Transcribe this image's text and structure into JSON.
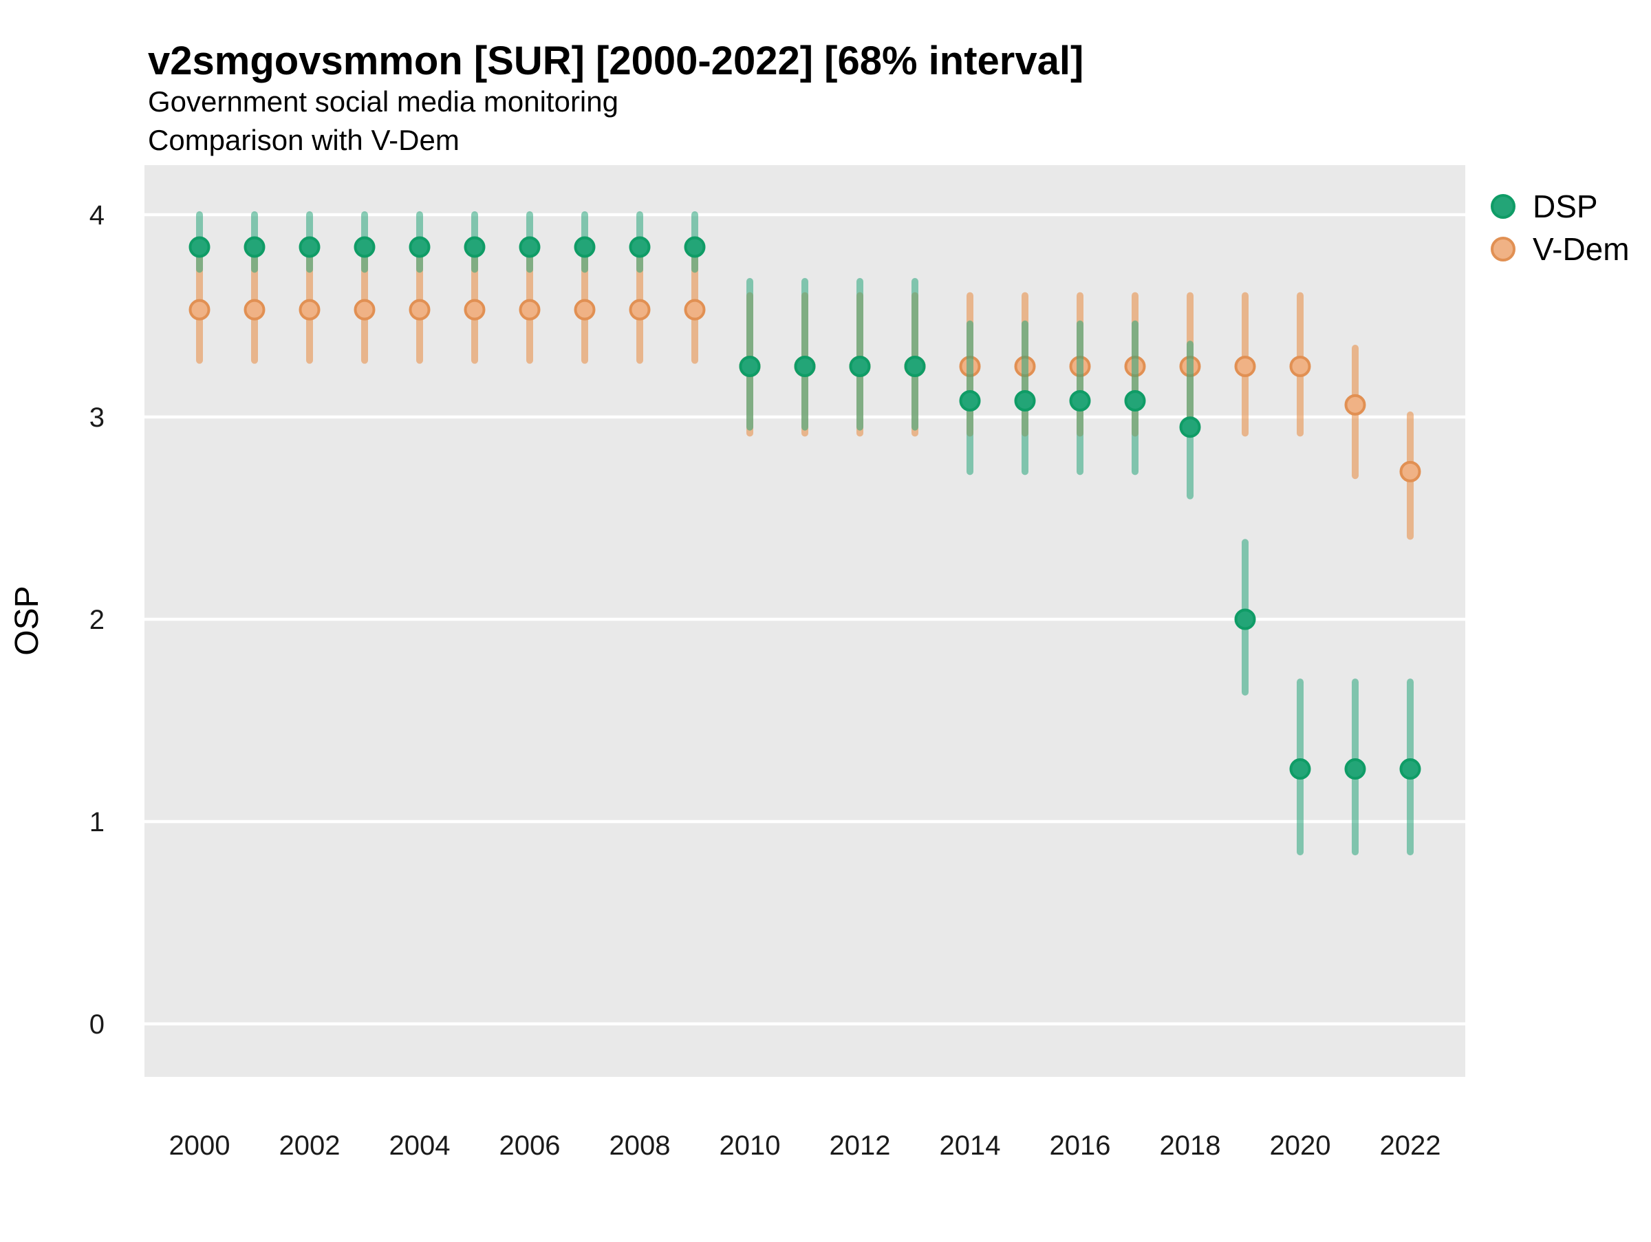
{
  "title": "v2smgovsmmon [SUR] [2000-2022] [68% interval]",
  "subtitle1": "Government social media monitoring",
  "subtitle2": "Comparison with V-Dem",
  "ylabel": "OSP",
  "legend": {
    "dsp": "DSP",
    "vdem": "V-Dem"
  },
  "colors": {
    "dsp_point": "#23a577",
    "dsp_point_stroke": "#0f9c66",
    "dsp_bar": "rgba(42,165,124,0.55)",
    "vdem_point": "#f0b285",
    "vdem_point_stroke": "#e19053",
    "vdem_bar": "rgba(232,146,79,0.6)",
    "panel_bg": "#e9e9e9",
    "grid": "#ffffff"
  },
  "chart_data": {
    "type": "pointrange",
    "title": "v2smgovsmmon [SUR] [2000-2022] [68% interval]",
    "subtitle": [
      "Government social media monitoring",
      "Comparison with V-Dem"
    ],
    "xlabel": "",
    "ylabel": "OSP",
    "interval": "68%",
    "x": [
      2000,
      2001,
      2002,
      2003,
      2004,
      2005,
      2006,
      2007,
      2008,
      2009,
      2010,
      2011,
      2012,
      2013,
      2014,
      2015,
      2016,
      2017,
      2018,
      2019,
      2020,
      2021,
      2022
    ],
    "x_ticks": [
      2000,
      2002,
      2004,
      2006,
      2008,
      2010,
      2012,
      2014,
      2016,
      2018,
      2020,
      2022
    ],
    "y_ticks": [
      0,
      1,
      2,
      3,
      4
    ],
    "ylim": [
      -0.25,
      4.25
    ],
    "grid": "horizontal-major-white-on-gray",
    "legend_position": "right",
    "draw_order": [
      "vdem",
      "dsp"
    ],
    "series": [
      {
        "key": "dsp",
        "name": "DSP",
        "values": [
          3.84,
          3.84,
          3.84,
          3.84,
          3.84,
          3.84,
          3.84,
          3.84,
          3.84,
          3.84,
          3.25,
          3.25,
          3.25,
          3.25,
          3.08,
          3.08,
          3.08,
          3.08,
          2.95,
          2.0,
          1.26,
          1.26,
          1.26
        ],
        "lo": [
          3.73,
          3.73,
          3.73,
          3.73,
          3.73,
          3.73,
          3.73,
          3.73,
          3.73,
          3.73,
          2.95,
          2.95,
          2.95,
          2.95,
          2.73,
          2.73,
          2.73,
          2.73,
          2.61,
          1.64,
          0.85,
          0.85,
          0.85
        ],
        "hi": [
          4.0,
          4.0,
          4.0,
          4.0,
          4.0,
          4.0,
          4.0,
          4.0,
          4.0,
          4.0,
          3.67,
          3.67,
          3.67,
          3.67,
          3.46,
          3.46,
          3.46,
          3.46,
          3.36,
          2.38,
          1.69,
          1.69,
          1.69
        ]
      },
      {
        "key": "vdem",
        "name": "V-Dem",
        "values": [
          3.53,
          3.53,
          3.53,
          3.53,
          3.53,
          3.53,
          3.53,
          3.53,
          3.53,
          3.53,
          3.25,
          3.25,
          3.25,
          3.25,
          3.25,
          3.25,
          3.25,
          3.25,
          3.25,
          3.25,
          3.25,
          3.06,
          2.73
        ],
        "lo": [
          3.28,
          3.28,
          3.28,
          3.28,
          3.28,
          3.28,
          3.28,
          3.28,
          3.28,
          3.28,
          2.92,
          2.92,
          2.92,
          2.92,
          2.92,
          2.92,
          2.92,
          2.92,
          2.92,
          2.92,
          2.92,
          2.71,
          2.41
        ],
        "hi": [
          3.79,
          3.79,
          3.79,
          3.79,
          3.79,
          3.79,
          3.79,
          3.79,
          3.79,
          3.79,
          3.6,
          3.6,
          3.6,
          3.6,
          3.6,
          3.6,
          3.6,
          3.6,
          3.6,
          3.6,
          3.6,
          3.34,
          3.01
        ]
      }
    ]
  }
}
